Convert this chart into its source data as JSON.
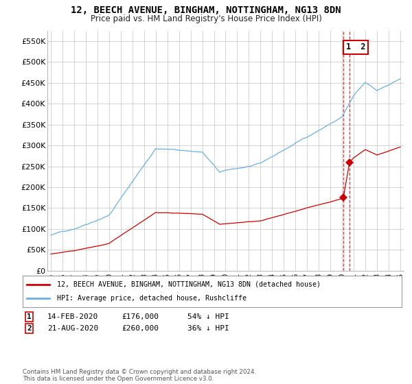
{
  "title": "12, BEECH AVENUE, BINGHAM, NOTTINGHAM, NG13 8DN",
  "subtitle": "Price paid vs. HM Land Registry's House Price Index (HPI)",
  "ylabel_ticks": [
    "£0",
    "£50K",
    "£100K",
    "£150K",
    "£200K",
    "£250K",
    "£300K",
    "£350K",
    "£400K",
    "£450K",
    "£500K",
    "£550K"
  ],
  "ytick_vals": [
    0,
    50000,
    100000,
    150000,
    200000,
    250000,
    300000,
    350000,
    400000,
    450000,
    500000,
    550000
  ],
  "ylim": [
    0,
    575000
  ],
  "sale1_date": 2020.12,
  "sale1_price": 176000,
  "sale2_date": 2020.64,
  "sale2_price": 260000,
  "hpi_color": "#6ab0e0",
  "sold_color": "#cc0000",
  "background_color": "#ffffff",
  "grid_color": "#cccccc",
  "legend_entries": [
    "12, BEECH AVENUE, BINGHAM, NOTTINGHAM, NG13 8DN (detached house)",
    "HPI: Average price, detached house, Rushcliffe"
  ],
  "table_entries": [
    {
      "num": "1",
      "date": "14-FEB-2020",
      "price": "£176,000",
      "pct": "54% ↓ HPI"
    },
    {
      "num": "2",
      "date": "21-AUG-2020",
      "price": "£260,000",
      "pct": "36% ↓ HPI"
    }
  ],
  "footnote": "Contains HM Land Registry data © Crown copyright and database right 2024.\nThis data is licensed under the Open Government Licence v3.0."
}
